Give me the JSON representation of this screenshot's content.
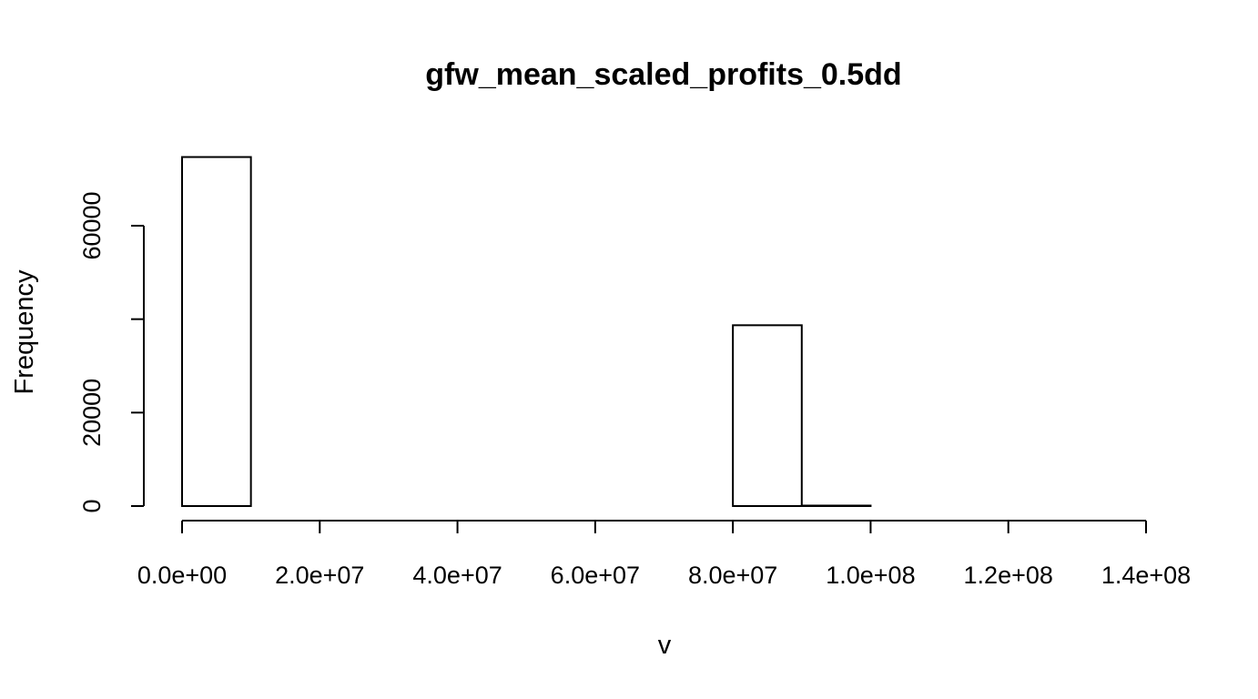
{
  "chart_data": {
    "type": "bar",
    "title": "gfw_mean_scaled_profits_0.5dd",
    "xlabel": "v",
    "ylabel": "Frequency",
    "xlim": [
      0,
      140000000
    ],
    "ylim": [
      0,
      75000
    ],
    "x_ticks": [
      0,
      20000000,
      40000000,
      60000000,
      80000000,
      100000000,
      120000000,
      140000000
    ],
    "x_tick_labels": [
      "0.0e+00",
      "2.0e+07",
      "4.0e+07",
      "6.0e+07",
      "8.0e+07",
      "1.0e+08",
      "1.2e+08",
      "1.4e+08"
    ],
    "y_ticks": [
      0,
      20000,
      40000,
      60000
    ],
    "y_tick_labels": [
      "0",
      "20000",
      "60000"
    ],
    "y_tick_label_values": [
      0,
      20000,
      60000
    ],
    "bin_edges": [
      0,
      10000000,
      20000000,
      30000000,
      40000000,
      50000000,
      60000000,
      70000000,
      80000000,
      90000000,
      100000000,
      110000000,
      120000000,
      130000000,
      140000000
    ],
    "values": [
      74700,
      0,
      0,
      0,
      0,
      0,
      0,
      0,
      38700,
      100,
      0,
      0,
      0,
      0
    ],
    "grid": false,
    "legend": "none"
  }
}
